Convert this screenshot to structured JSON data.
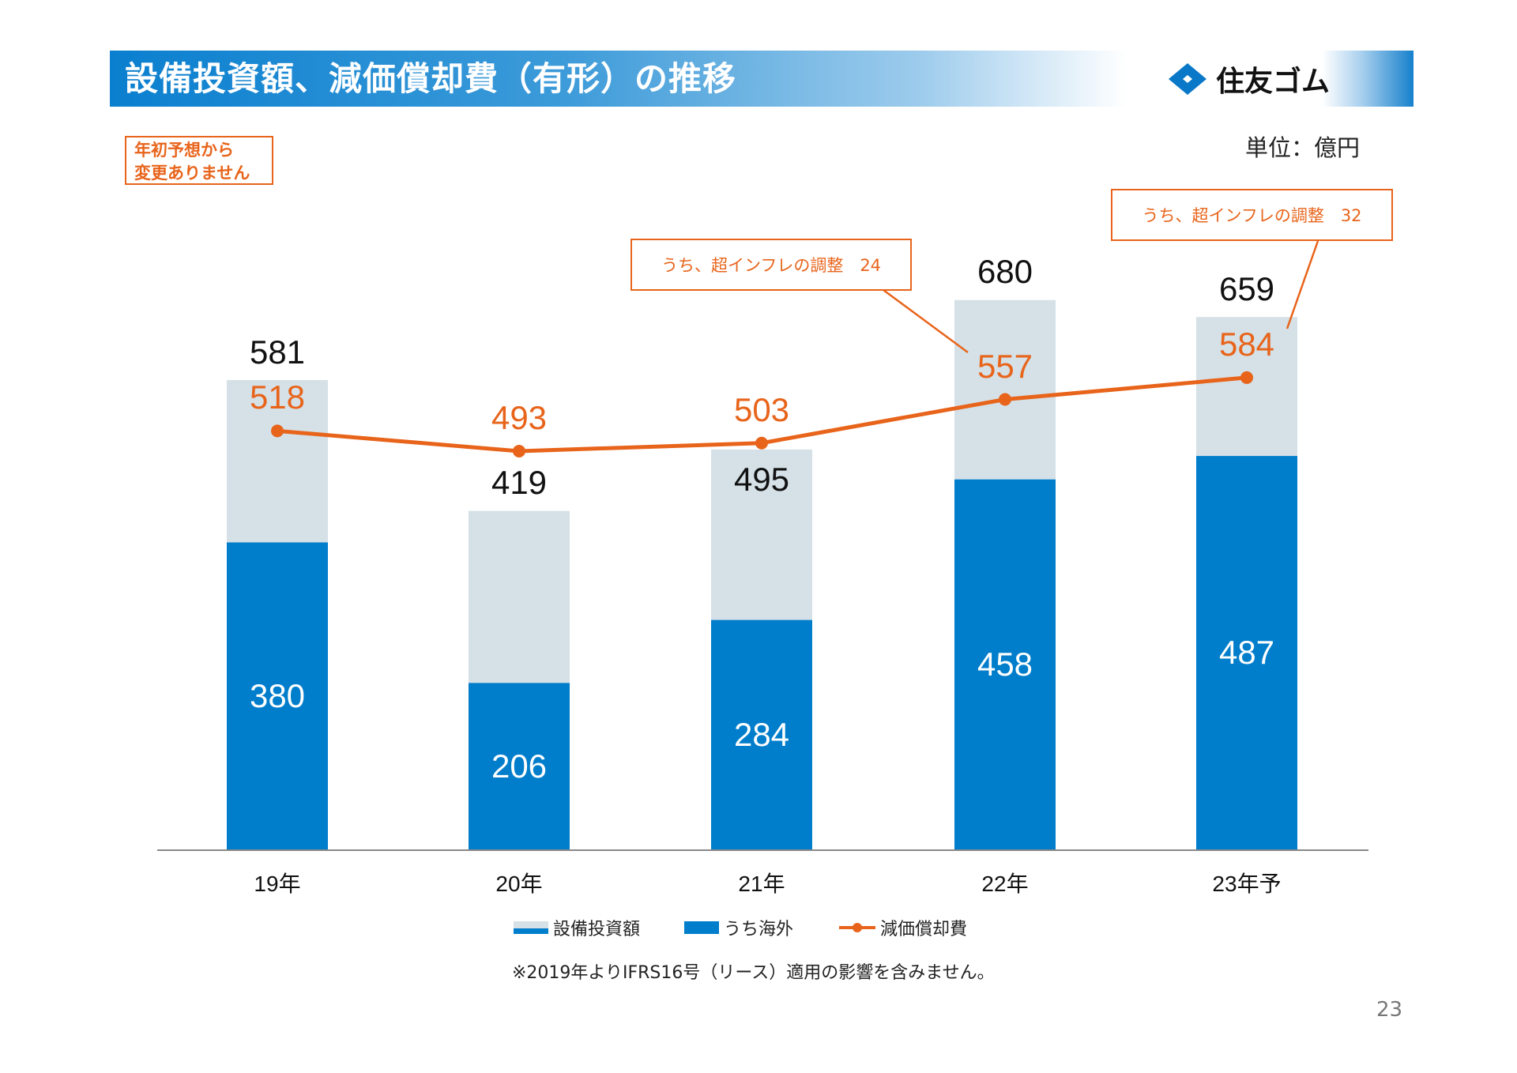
{
  "header": {
    "title": "設備投資額、減価償却費（有形）の推移",
    "logo_text": "住友ゴム"
  },
  "unit": "単位：億円",
  "note": [
    "年初予想から",
    "変更ありません"
  ],
  "callouts": [
    {
      "text": "うち、超インフレの調整　24",
      "target": "22年"
    },
    {
      "text": "うち、超インフレの調整　32",
      "target": "23年予"
    }
  ],
  "colors": {
    "capex": "#d5e1e7",
    "overseas": "#007dcb",
    "depreciation": "#e8641b"
  },
  "chart_data": {
    "type": "bar",
    "categories": [
      "19年",
      "20年",
      "21年",
      "22年",
      "23年予"
    ],
    "series": [
      {
        "name": "設備投資額",
        "type": "bar",
        "values": [
          581,
          419,
          495,
          680,
          659
        ]
      },
      {
        "name": "うち海外",
        "type": "bar",
        "values": [
          380,
          206,
          284,
          458,
          487
        ]
      },
      {
        "name": "減価償却費",
        "type": "line",
        "values": [
          518,
          493,
          503,
          557,
          584
        ]
      }
    ],
    "ylim": [
      0,
      700
    ],
    "grid": false,
    "legend": "bottom"
  },
  "legend": [
    "設備投資額",
    "うち海外",
    "減価償却費"
  ],
  "footnote": "※2019年よりIFRS16号（リース）適用の影響を含みません。",
  "page_number": "23"
}
